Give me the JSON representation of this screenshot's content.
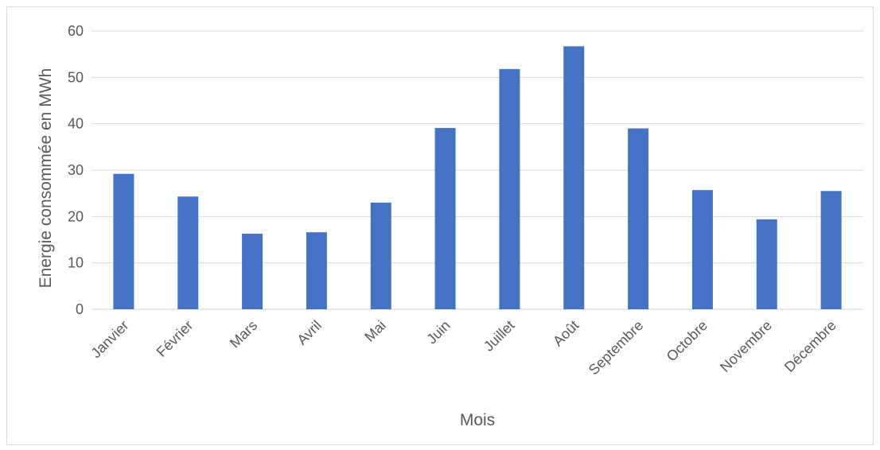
{
  "chart_data": {
    "type": "bar",
    "categories": [
      "Janvier",
      "Février",
      "Mars",
      "Avril",
      "Mai",
      "Juin",
      "Juillet",
      "Août",
      "Septembre",
      "Octobre",
      "Novembre",
      "Décembre"
    ],
    "values": [
      29.2,
      24.3,
      16.3,
      16.6,
      23.0,
      39.1,
      51.8,
      56.7,
      39.0,
      25.7,
      19.4,
      25.5
    ],
    "title": "",
    "xlabel": "Mois",
    "ylabel": "Energie consommée en MWh",
    "ylim": [
      0,
      60
    ],
    "yticks": [
      0,
      10,
      20,
      30,
      40,
      50,
      60
    ],
    "grid": true,
    "legend": "none",
    "colors": {
      "bar": "#4472c4",
      "grid": "#d9d9d9",
      "text": "#595959"
    }
  }
}
